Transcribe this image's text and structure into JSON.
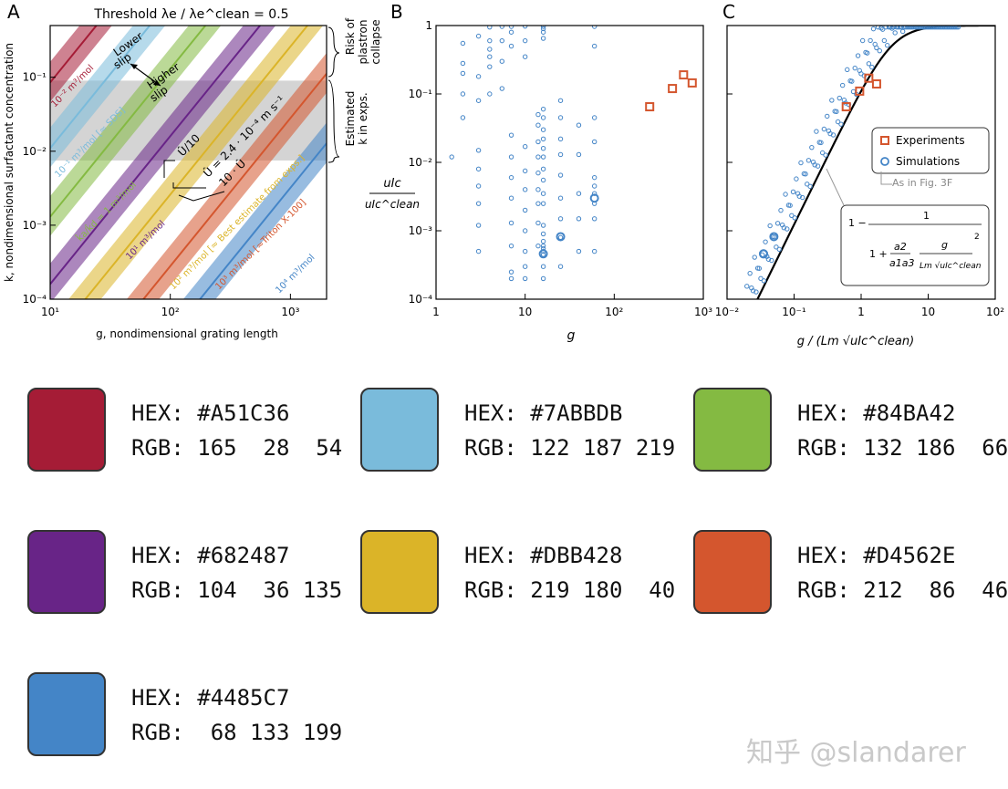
{
  "panels": {
    "A": {
      "letter": "A",
      "top_title": "Threshold λe / λe^clean = 0.5",
      "xlabel": "g,  nondimensional grating length",
      "ylabel": "k,  nondimensional surfactant concentration",
      "brace_upper": [
        "Risk of",
        "plastron",
        "collapse"
      ],
      "brace_lower": [
        "Estimated",
        "k in exps."
      ],
      "annotations": {
        "lower_slip": [
          "Lower",
          "slip"
        ],
        "higher_slip": [
          "Higher",
          "slip"
        ],
        "u_over_10": "Û/10",
        "u_eq": "Û = 2.4 · 10⁻⁴ m s⁻¹",
        "u_times_10": "10 · Û"
      }
    },
    "B": {
      "letter": "B",
      "xlabel": "g",
      "ylabel_num": "uIc",
      "ylabel_den": "uIc^clean"
    },
    "C": {
      "letter": "C",
      "xlabel": "g / (Lm √uIc^clean)",
      "legend": {
        "experiments": "Experiments",
        "simulations": "Simulations",
        "note": "As in Fig. 3F"
      },
      "formula": {
        "one": "1 −",
        "num": "1",
        "den_one": "1 +",
        "a2": "a2",
        "a1a3": "a1a3",
        "g": "g",
        "lm": "Lm √uIc^clean",
        "exp": "2"
      }
    }
  },
  "chart_data": [
    {
      "type": "line",
      "panel": "A",
      "xscale": "log",
      "yscale": "log",
      "xlim": [
        10,
        2000
      ],
      "ylim": [
        0.0001,
        0.5
      ],
      "xticks": [
        "10¹",
        "10²",
        "10³"
      ],
      "yticks": [
        "10⁻⁴",
        "10⁻³",
        "10⁻²",
        "10⁻¹"
      ],
      "shaded_band_k": [
        0.0075,
        0.09
      ],
      "series": [
        {
          "name": "10⁻² m³/mol",
          "color": "#A51C36",
          "k_at_g10": 0.085,
          "slope": 2
        },
        {
          "name": "10⁻¹ m³/mol [≈ SDS]",
          "color": "#7ABBDB",
          "k_at_g10": 0.011,
          "slope": 2
        },
        {
          "name": "k̂a/k̂d = 1 m³/mol",
          "color": "#84BA42",
          "k_at_g10": 0.0013,
          "slope": 2
        },
        {
          "name": "10¹ m³/mol",
          "color": "#682487",
          "k_at_g10": 0.00016,
          "slope": 2
        },
        {
          "name": "10² m³/mol [≈ Best estimate from exps.]",
          "color": "#DBB428",
          "k_at_g10": 2.6e-05,
          "slope": 2
        },
        {
          "name": "10³ m³/mol [≈Triton X-100]",
          "color": "#D4562E",
          "k_at_g10": 2.8e-06,
          "slope": 2
        },
        {
          "name": "10⁴ m³/mol",
          "color": "#4485C7",
          "k_at_g10": 3.2e-07,
          "slope": 2
        }
      ]
    },
    {
      "type": "scatter",
      "panel": "B",
      "xscale": "log",
      "yscale": "log",
      "xlim": [
        1,
        1000
      ],
      "ylim": [
        0.0001,
        1
      ],
      "xticks": [
        "1",
        "10",
        "10²",
        "10³"
      ],
      "yticks": [
        "10⁻⁴",
        "10⁻³",
        "10⁻²",
        "10⁻¹",
        "1"
      ],
      "simulations": [
        [
          1.5,
          0.012
        ],
        [
          2,
          0.55
        ],
        [
          2,
          0.1
        ],
        [
          2,
          0.045
        ],
        [
          2,
          0.2
        ],
        [
          2,
          0.28
        ],
        [
          3,
          0.7
        ],
        [
          3,
          0.18
        ],
        [
          3,
          0.08
        ],
        [
          3,
          0.015
        ],
        [
          3,
          0.008
        ],
        [
          3,
          0.0045
        ],
        [
          3,
          0.0025
        ],
        [
          3,
          0.0012
        ],
        [
          3,
          0.0005
        ],
        [
          4,
          0.95
        ],
        [
          4,
          0.35
        ],
        [
          4,
          0.25
        ],
        [
          4,
          0.45
        ],
        [
          4,
          0.6
        ],
        [
          4,
          0.1
        ],
        [
          5.5,
          0.97
        ],
        [
          5.5,
          0.12
        ],
        [
          5.5,
          0.6
        ],
        [
          5.5,
          0.3
        ],
        [
          7,
          0.025
        ],
        [
          7,
          0.012
        ],
        [
          7,
          0.006
        ],
        [
          7,
          0.003
        ],
        [
          7,
          0.0013
        ],
        [
          7,
          0.0006
        ],
        [
          7,
          0.0002
        ],
        [
          7,
          0.00025
        ],
        [
          7,
          0.97
        ],
        [
          7,
          0.8
        ],
        [
          7,
          0.5
        ],
        [
          10,
          0.98
        ],
        [
          10,
          0.6
        ],
        [
          10,
          0.35
        ],
        [
          10,
          0.017
        ],
        [
          10,
          0.0075
        ],
        [
          10,
          0.004
        ],
        [
          10,
          0.002
        ],
        [
          10,
          0.001
        ],
        [
          10,
          0.0005
        ],
        [
          10,
          0.0003
        ],
        [
          10,
          0.0002
        ],
        [
          14,
          0.05
        ],
        [
          14,
          0.035
        ],
        [
          14,
          0.02
        ],
        [
          14,
          0.012
        ],
        [
          14,
          0.007
        ],
        [
          14,
          0.004
        ],
        [
          14,
          0.0025
        ],
        [
          14,
          0.0013
        ],
        [
          14,
          0.0006
        ],
        [
          16,
          0.97
        ],
        [
          16,
          0.9
        ],
        [
          16,
          0.8
        ],
        [
          16,
          0.65
        ],
        [
          16,
          0.06
        ],
        [
          16,
          0.045
        ],
        [
          16,
          0.03
        ],
        [
          16,
          0.022
        ],
        [
          16,
          0.016
        ],
        [
          16,
          0.012
        ],
        [
          16,
          0.008
        ],
        [
          16,
          0.0055
        ],
        [
          16,
          0.0035
        ],
        [
          16,
          0.0025
        ],
        [
          16,
          0.0012
        ],
        [
          16,
          0.0009
        ],
        [
          16,
          0.0007
        ],
        [
          16,
          0.0006
        ],
        [
          16,
          0.00055
        ],
        [
          16,
          0.0005
        ],
        [
          16,
          0.00045
        ],
        [
          16,
          0.0003
        ],
        [
          16,
          0.0002
        ],
        [
          25,
          0.08
        ],
        [
          25,
          0.045
        ],
        [
          25,
          0.022
        ],
        [
          25,
          0.013
        ],
        [
          25,
          0.0065
        ],
        [
          25,
          0.003
        ],
        [
          25,
          0.0015
        ],
        [
          25,
          0.0008
        ],
        [
          25,
          0.0003
        ],
        [
          40,
          0.035
        ],
        [
          40,
          0.013
        ],
        [
          40,
          0.0035
        ],
        [
          40,
          0.0015
        ],
        [
          40,
          0.0005
        ],
        [
          60,
          0.97
        ],
        [
          60,
          0.5
        ],
        [
          60,
          0.045
        ],
        [
          60,
          0.02
        ],
        [
          60,
          0.006
        ],
        [
          60,
          0.0045
        ],
        [
          60,
          0.0035
        ],
        [
          60,
          0.0025
        ],
        [
          60,
          0.0015
        ],
        [
          60,
          0.0005
        ],
        [
          16,
          0.00046
        ],
        [
          25,
          0.00082
        ],
        [
          60,
          0.003
        ]
      ],
      "experiments": [
        [
          250,
          0.065
        ],
        [
          450,
          0.12
        ],
        [
          600,
          0.19
        ],
        [
          750,
          0.145
        ]
      ]
    },
    {
      "type": "scatter",
      "panel": "C",
      "xscale": "log",
      "yscale": "log",
      "xlim": [
        0.01,
        100
      ],
      "ylim": [
        0.0001,
        1
      ],
      "xticks": [
        "10⁻²",
        "10⁻¹",
        "1",
        "10",
        "10²"
      ],
      "model_curve": "1 − 1 / (1 + (a2/(a1 a3)) (g/(Lm √uIc^clean))²)",
      "model_coefficient": 0.12,
      "simulations_curve_factor": [
        2.5,
        1.6,
        3.2,
        1.2,
        4.0,
        2.2,
        1.8,
        5.0,
        1.4,
        2.8
      ],
      "experiments": [
        [
          0.6,
          0.065
        ],
        [
          0.95,
          0.11
        ],
        [
          1.3,
          0.17
        ],
        [
          1.7,
          0.14
        ]
      ]
    }
  ],
  "palette": [
    {
      "hex": "HEX: #A51C36",
      "rgb": "RGB: 165  28  54",
      "color": "#A51C36"
    },
    {
      "hex": "HEX: #7ABBDB",
      "rgb": "RGB: 122 187 219",
      "color": "#7ABBDB"
    },
    {
      "hex": "HEX: #84BA42",
      "rgb": "RGB: 132 186  66",
      "color": "#84BA42"
    },
    {
      "hex": "HEX: #682487",
      "rgb": "RGB: 104  36 135",
      "color": "#682487"
    },
    {
      "hex": "HEX: #DBB428",
      "rgb": "RGB: 219 180  40",
      "color": "#DBB428"
    },
    {
      "hex": "HEX: #D4562E",
      "rgb": "RGB: 212  86  46",
      "color": "#D4562E"
    },
    {
      "hex": "HEX: #4485C7",
      "rgb": "RGB:  68 133 199",
      "color": "#4485C7"
    }
  ],
  "watermark": "知乎 @slandarer"
}
